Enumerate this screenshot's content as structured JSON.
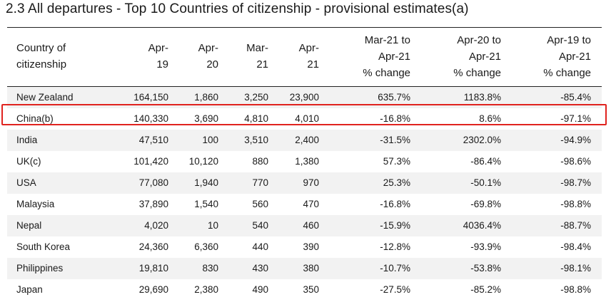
{
  "title": "2.3 All departures - Top 10 Countries of citizenship - provisional estimates(a)",
  "columns": {
    "country": [
      "Country of",
      "citizenship"
    ],
    "apr19": [
      "Apr-",
      "19"
    ],
    "apr20": [
      "Apr-",
      "20"
    ],
    "mar21": [
      "Mar-",
      "21"
    ],
    "apr21": [
      "Apr-",
      "21"
    ],
    "chg_mar21": [
      "Mar-21 to",
      "Apr-21",
      "% change"
    ],
    "chg_apr20": [
      "Apr-20 to",
      "Apr-21",
      "% change"
    ],
    "chg_apr19": [
      "Apr-19 to",
      "Apr-21",
      "% change"
    ]
  },
  "rows": [
    {
      "country": "New Zealand",
      "apr19": "164,150",
      "apr20": "1,860",
      "mar21": "3,250",
      "apr21": "23,900",
      "chg_mar21": "635.7%",
      "chg_apr20": "1183.8%",
      "chg_apr19": "-85.4%"
    },
    {
      "country": "China(b)",
      "apr19": "140,330",
      "apr20": "3,690",
      "mar21": "4,810",
      "apr21": "4,010",
      "chg_mar21": "-16.8%",
      "chg_apr20": "8.6%",
      "chg_apr19": "-97.1%"
    },
    {
      "country": "India",
      "apr19": "47,510",
      "apr20": "100",
      "mar21": "3,510",
      "apr21": "2,400",
      "chg_mar21": "-31.5%",
      "chg_apr20": "2302.0%",
      "chg_apr19": "-94.9%"
    },
    {
      "country": "UK(c)",
      "apr19": "101,420",
      "apr20": "10,120",
      "mar21": "880",
      "apr21": "1,380",
      "chg_mar21": "57.3%",
      "chg_apr20": "-86.4%",
      "chg_apr19": "-98.6%"
    },
    {
      "country": "USA",
      "apr19": "77,080",
      "apr20": "1,940",
      "mar21": "770",
      "apr21": "970",
      "chg_mar21": "25.3%",
      "chg_apr20": "-50.1%",
      "chg_apr19": "-98.7%"
    },
    {
      "country": "Malaysia",
      "apr19": "37,890",
      "apr20": "1,540",
      "mar21": "560",
      "apr21": "470",
      "chg_mar21": "-16.8%",
      "chg_apr20": "-69.8%",
      "chg_apr19": "-98.8%"
    },
    {
      "country": "Nepal",
      "apr19": "4,020",
      "apr20": "10",
      "mar21": "540",
      "apr21": "460",
      "chg_mar21": "-15.9%",
      "chg_apr20": "4036.4%",
      "chg_apr19": "-88.7%"
    },
    {
      "country": "South Korea",
      "apr19": "24,360",
      "apr20": "6,360",
      "mar21": "440",
      "apr21": "390",
      "chg_mar21": "-12.8%",
      "chg_apr20": "-93.9%",
      "chg_apr19": "-98.4%"
    },
    {
      "country": "Philippines",
      "apr19": "19,810",
      "apr20": "830",
      "mar21": "430",
      "apr21": "380",
      "chg_mar21": "-10.7%",
      "chg_apr20": "-53.8%",
      "chg_apr19": "-98.1%"
    },
    {
      "country": "Japan",
      "apr19": "29,690",
      "apr20": "2,380",
      "mar21": "490",
      "apr21": "350",
      "chg_mar21": "-27.5%",
      "chg_apr20": "-85.2%",
      "chg_apr19": "-98.8%"
    }
  ],
  "highlight": {
    "row_country": "China(b)",
    "color": "#e0231f"
  }
}
